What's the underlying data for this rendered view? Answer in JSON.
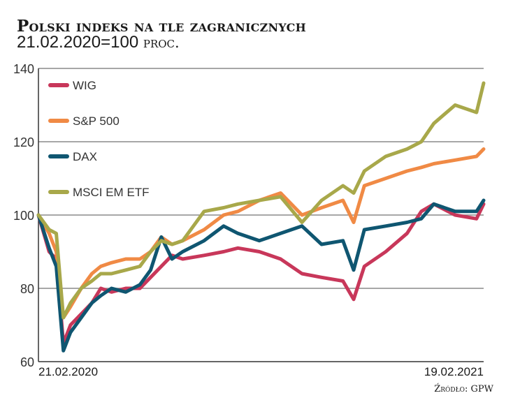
{
  "chart_data": {
    "type": "line",
    "title": "Polski indeks na tle zagranicznych",
    "subtitle": "21.02.2020=100",
    "unit": "proc.",
    "xlabel": "",
    "ylabel": "",
    "x_tick_labels": [
      "21.02.2020",
      "19.02.2021"
    ],
    "xlim": [
      0,
      250
    ],
    "ylim": [
      60,
      140
    ],
    "y_ticks": [
      60,
      80,
      100,
      120,
      140
    ],
    "grid": true,
    "legend_position": "top-left",
    "x": [
      0,
      6,
      10,
      14,
      18,
      24,
      30,
      35,
      41,
      49,
      57,
      63,
      69,
      75,
      81,
      93,
      104,
      112,
      124,
      136,
      148,
      159,
      171,
      177,
      183,
      195,
      207,
      215,
      222,
      234,
      246,
      250
    ],
    "series": [
      {
        "name": "WIG",
        "color": "#c8375a",
        "values": [
          100,
          90,
          88,
          65,
          70,
          73,
          76,
          80,
          79,
          80,
          80,
          83,
          86,
          89,
          88,
          89,
          90,
          91,
          90,
          88,
          84,
          83,
          82,
          77,
          86,
          90,
          95,
          101,
          103,
          100,
          99,
          103
        ]
      },
      {
        "name": "S&P 500",
        "color": "#f08a45",
        "values": [
          100,
          95,
          90,
          72,
          75,
          80,
          84,
          86,
          87,
          88,
          88,
          90,
          94,
          92,
          93,
          96,
          100,
          101,
          104,
          106,
          100,
          102,
          104,
          98,
          108,
          110,
          112,
          113,
          114,
          115,
          116,
          118
        ]
      },
      {
        "name": "DAX",
        "color": "#0f5671",
        "values": [
          100,
          91,
          86,
          63,
          68,
          72,
          76,
          78,
          80,
          79,
          81,
          85,
          94,
          88,
          90,
          93,
          97,
          95,
          93,
          95,
          97,
          92,
          93,
          85,
          96,
          97,
          98,
          99,
          103,
          101,
          101,
          104
        ]
      },
      {
        "name": "MSCI EM ETF",
        "color": "#a8a84a",
        "values": [
          100,
          96,
          95,
          72,
          76,
          80,
          82,
          84,
          84,
          85,
          86,
          90,
          93,
          92,
          93,
          101,
          102,
          103,
          104,
          105,
          98,
          104,
          108,
          106,
          112,
          116,
          118,
          120,
          125,
          130,
          128,
          136
        ]
      }
    ]
  },
  "source": "Źródło: GPW"
}
